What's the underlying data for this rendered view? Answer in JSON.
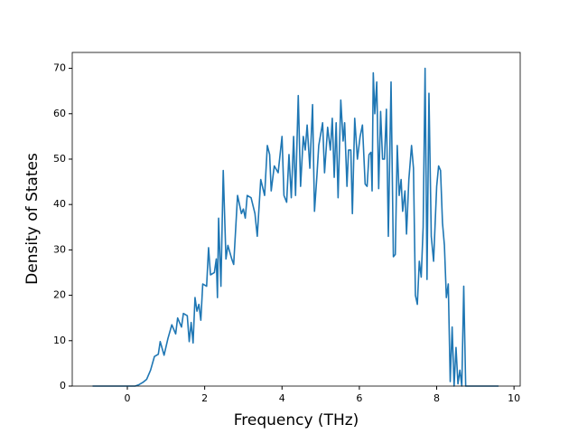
{
  "chart_data": {
    "type": "line",
    "x_label": "Frequency (THz)",
    "y_label": "Density of States",
    "x": [
      -0.9,
      0.2,
      0.3,
      0.4,
      0.5,
      0.6,
      0.7,
      0.8,
      0.85,
      0.95,
      1.05,
      1.15,
      1.25,
      1.3,
      1.4,
      1.45,
      1.55,
      1.6,
      1.65,
      1.7,
      1.75,
      1.8,
      1.85,
      1.9,
      1.95,
      2.05,
      2.1,
      2.15,
      2.25,
      2.3,
      2.33,
      2.36,
      2.42,
      2.48,
      2.55,
      2.6,
      2.7,
      2.75,
      2.85,
      2.95,
      3.0,
      3.05,
      3.1,
      3.2,
      3.3,
      3.36,
      3.45,
      3.55,
      3.62,
      3.68,
      3.72,
      3.8,
      3.9,
      4.0,
      4.05,
      4.12,
      4.18,
      4.24,
      4.3,
      4.35,
      4.42,
      4.48,
      4.55,
      4.6,
      4.65,
      4.72,
      4.79,
      4.84,
      4.9,
      4.95,
      5.05,
      5.1,
      5.18,
      5.25,
      5.3,
      5.35,
      5.4,
      5.45,
      5.52,
      5.58,
      5.62,
      5.68,
      5.72,
      5.78,
      5.82,
      5.88,
      5.95,
      6.02,
      6.08,
      6.15,
      6.2,
      6.25,
      6.3,
      6.33,
      6.36,
      6.4,
      6.45,
      6.5,
      6.55,
      6.6,
      6.65,
      6.7,
      6.75,
      6.82,
      6.88,
      6.93,
      6.98,
      7.03,
      7.08,
      7.12,
      7.18,
      7.22,
      7.28,
      7.35,
      7.4,
      7.45,
      7.5,
      7.55,
      7.6,
      7.65,
      7.7,
      7.75,
      7.8,
      7.86,
      7.92,
      8.0,
      8.05,
      8.1,
      8.15,
      8.2,
      8.25,
      8.3,
      8.35,
      8.4,
      8.45,
      8.5,
      8.55,
      8.6,
      8.65,
      8.7,
      8.75,
      8.8,
      9.6
    ],
    "series": [
      {
        "color": "#1f77b4",
        "values": [
          0,
          0,
          0.3,
          0.8,
          1.5,
          3.5,
          6.5,
          7,
          9.8,
          6.8,
          10.5,
          13.5,
          11.5,
          15,
          13,
          16,
          15.5,
          9.8,
          14,
          9.5,
          19.5,
          16.5,
          18,
          14.5,
          22.5,
          22,
          30.5,
          24.5,
          25,
          28,
          19.5,
          37,
          22,
          47.5,
          28,
          31,
          28,
          26.8,
          42,
          38,
          39,
          37,
          42,
          41.5,
          38,
          33,
          45.5,
          42,
          53,
          51,
          43,
          48.5,
          47,
          55,
          42,
          40.5,
          51,
          41.5,
          55,
          42,
          64,
          44,
          55,
          52,
          57.5,
          48,
          62,
          38.5,
          46,
          53,
          58,
          47,
          57,
          52,
          59,
          46,
          58,
          41.5,
          63,
          54,
          58,
          44,
          52,
          52,
          38,
          59,
          50,
          55,
          57.5,
          44.5,
          44,
          51,
          51.5,
          43,
          69,
          60,
          67,
          43.5,
          60.5,
          50,
          50,
          61,
          33,
          67,
          28.5,
          29,
          53,
          42,
          45.5,
          38.5,
          43,
          33.5,
          45.5,
          53,
          48,
          20,
          18,
          27.5,
          24,
          35,
          70,
          23.5,
          64.5,
          33,
          27.5,
          44,
          48.5,
          47.5,
          36,
          31,
          19.5,
          22.5,
          1,
          13,
          0,
          8.5,
          0.5,
          3.5,
          0,
          22,
          0,
          0,
          0
        ]
      }
    ],
    "xlim": [
      -1.425,
      10.16
    ],
    "ylim": [
      0,
      73.5
    ],
    "xticks": [
      0,
      2,
      4,
      6,
      8,
      10
    ],
    "yticks": [
      0,
      10,
      20,
      30,
      40,
      50,
      60,
      70
    ]
  }
}
